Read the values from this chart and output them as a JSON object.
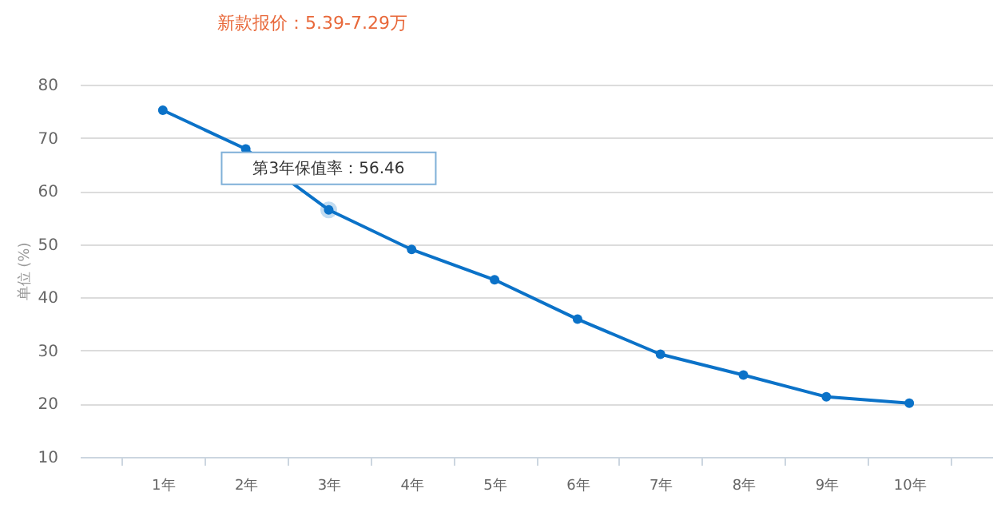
{
  "chart_data": {
    "type": "line",
    "subtitle": "新款报价：5.39-7.29万",
    "ylabel": "单位 (%)",
    "categories": [
      "1年",
      "2年",
      "3年",
      "4年",
      "5年",
      "6年",
      "7年",
      "8年",
      "9年",
      "10年"
    ],
    "series": [
      {
        "color": "#0b72c8",
        "values": [
          75.2,
          67.9,
          56.46,
          49.0,
          43.3,
          35.9,
          29.3,
          25.4,
          21.3,
          20.1
        ]
      }
    ],
    "ylim": [
      10,
      80
    ],
    "yticks": [
      10,
      20,
      30,
      40,
      50,
      60,
      70,
      80
    ],
    "grid": "y",
    "marker": "circle",
    "line_style": "solid",
    "legend": false,
    "annotations": [
      {
        "text": "第3年保值率：56.46",
        "x": "3年",
        "y": 56.46
      }
    ]
  }
}
